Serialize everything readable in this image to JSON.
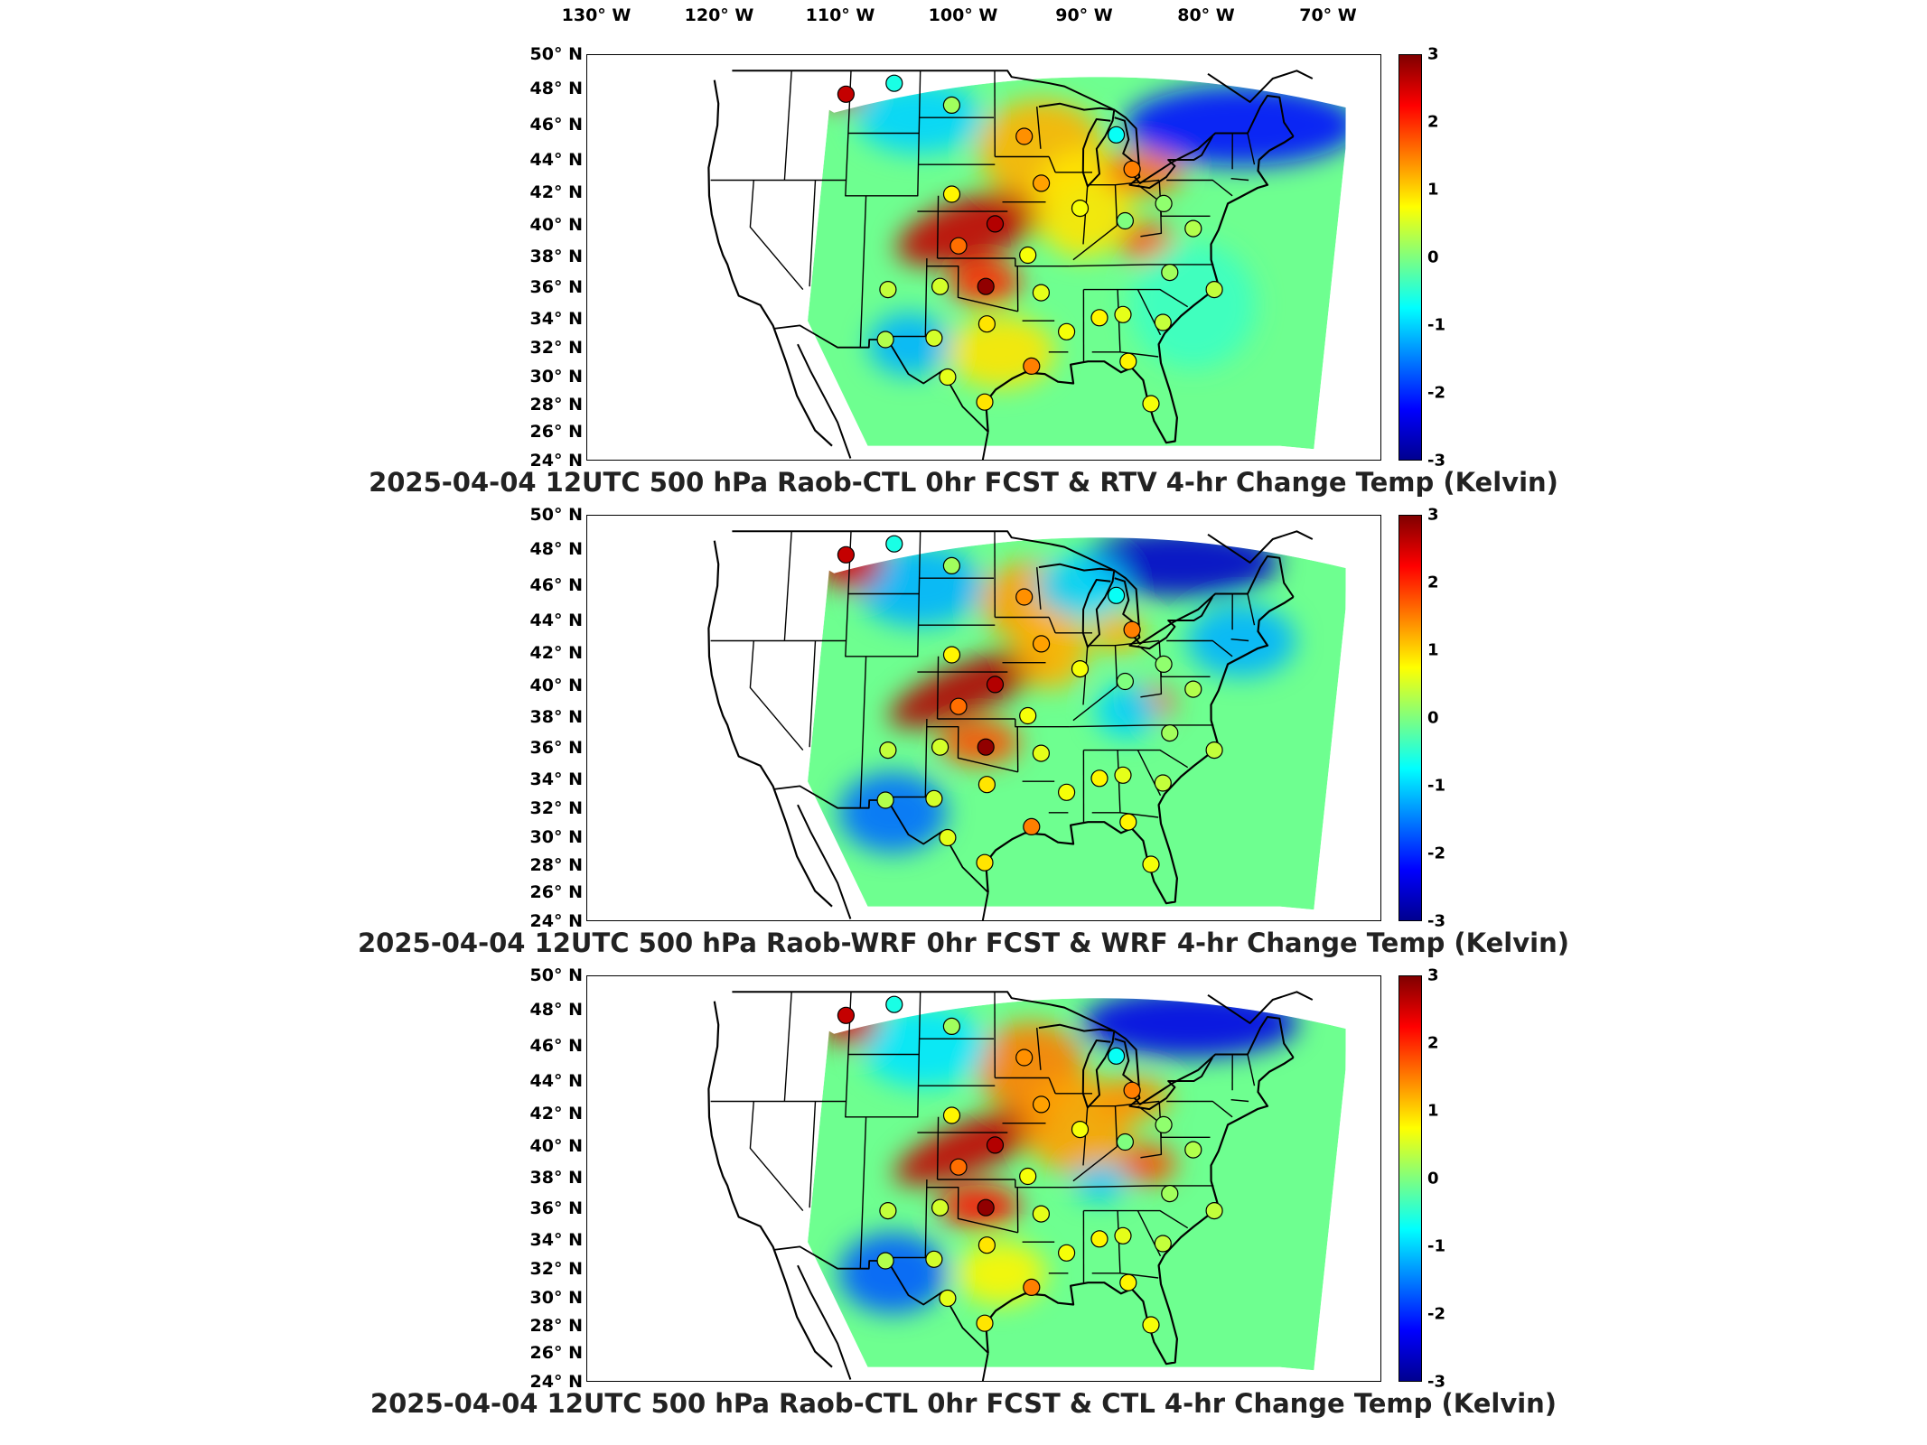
{
  "lon_labels": [
    "130° W",
    "120° W",
    "110° W",
    "100° W",
    "90° W",
    "80° W",
    "70° W"
  ],
  "lat_labels": [
    "50° N",
    "48° N",
    "46° N",
    "44° N",
    "42° N",
    "40° N",
    "38° N",
    "36° N",
    "34° N",
    "32° N",
    "30° N",
    "28° N",
    "26° N",
    "24° N"
  ],
  "colorbar": {
    "ticks": [
      "3",
      "2",
      "1",
      "0",
      "-1",
      "-2",
      "-3"
    ],
    "range": [
      -3,
      3
    ],
    "colormap": [
      "#00008f",
      "#0000ff",
      "#007fff",
      "#00ffff",
      "#7fff7f",
      "#ffff00",
      "#ff7f00",
      "#ff0000",
      "#800000"
    ]
  },
  "panels": [
    {
      "title": "2025-04-04 12UTC 500 hPa Raob-CTL 0hr FCST & RTV 4-hr Change Temp (Kelvin)"
    },
    {
      "title": "2025-04-04 12UTC 500 hPa Raob-WRF 0hr FCST & WRF 4-hr Change Temp (Kelvin)"
    },
    {
      "title": "2025-04-04 12UTC 500 hPa Raob-CTL 0hr FCST & CTL 4-hr Change Temp (Kelvin)"
    }
  ],
  "raob_stations": [
    {
      "lon": -111.4,
      "lat": 47.5,
      "value": 2.6
    },
    {
      "lon": -106.6,
      "lat": 48.2,
      "value": -0.6
    },
    {
      "lon": -100.8,
      "lat": 46.8,
      "value": 0.2
    },
    {
      "lon": -93.6,
      "lat": 44.8,
      "value": 1.4
    },
    {
      "lon": -84.5,
      "lat": 44.9,
      "value": -0.7
    },
    {
      "lon": -83.1,
      "lat": 42.7,
      "value": 1.5
    },
    {
      "lon": -100.7,
      "lat": 41.1,
      "value": 0.8
    },
    {
      "lon": -92.0,
      "lat": 41.8,
      "value": 1.3
    },
    {
      "lon": -88.3,
      "lat": 40.2,
      "value": 0.7
    },
    {
      "lon": -80.2,
      "lat": 40.5,
      "value": 0.1
    },
    {
      "lon": -96.5,
      "lat": 39.2,
      "value": 2.7
    },
    {
      "lon": -100.0,
      "lat": 37.8,
      "value": 1.6
    },
    {
      "lon": -93.4,
      "lat": 37.2,
      "value": 0.7
    },
    {
      "lon": -84.0,
      "lat": 39.4,
      "value": 0.0
    },
    {
      "lon": -77.5,
      "lat": 38.9,
      "value": 0.3
    },
    {
      "lon": -80.0,
      "lat": 36.1,
      "value": 0.2
    },
    {
      "lon": -75.9,
      "lat": 35.0,
      "value": 0.4
    },
    {
      "lon": -97.4,
      "lat": 35.2,
      "value": 2.9
    },
    {
      "lon": -101.7,
      "lat": 35.2,
      "value": 0.5
    },
    {
      "lon": -106.6,
      "lat": 35.0,
      "value": 0.4
    },
    {
      "lon": -92.2,
      "lat": 34.8,
      "value": 0.6
    },
    {
      "lon": -86.8,
      "lat": 33.2,
      "value": 0.8
    },
    {
      "lon": -84.6,
      "lat": 33.4,
      "value": 0.6
    },
    {
      "lon": -89.9,
      "lat": 32.3,
      "value": 0.7
    },
    {
      "lon": -80.9,
      "lat": 32.9,
      "value": 0.4
    },
    {
      "lon": -97.3,
      "lat": 32.8,
      "value": 0.9
    },
    {
      "lon": -102.2,
      "lat": 31.9,
      "value": 0.5
    },
    {
      "lon": -106.7,
      "lat": 31.8,
      "value": 0.3
    },
    {
      "lon": -93.2,
      "lat": 30.1,
      "value": 1.5
    },
    {
      "lon": -84.3,
      "lat": 30.4,
      "value": 0.8
    },
    {
      "lon": -100.9,
      "lat": 29.4,
      "value": 0.6
    },
    {
      "lon": -97.5,
      "lat": 27.8,
      "value": 0.9
    },
    {
      "lon": -82.4,
      "lat": 27.7,
      "value": 0.7
    }
  ]
}
